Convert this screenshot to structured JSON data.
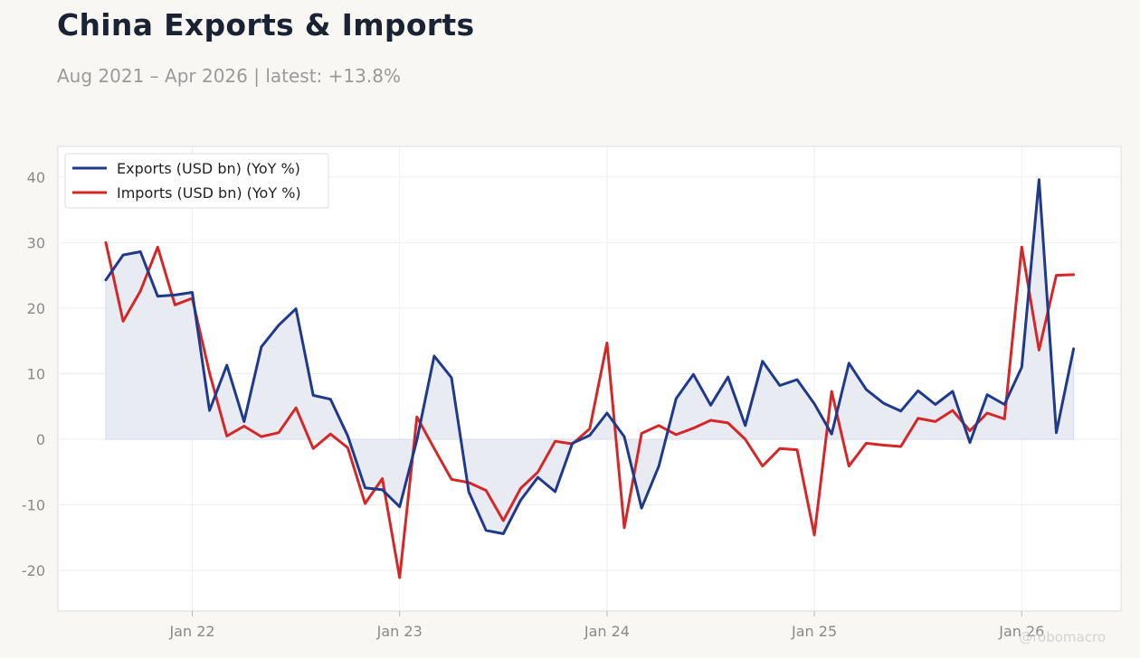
{
  "header": {
    "title": "China Exports & Imports",
    "subtitle": "Aug 2021 – Apr 2026 | latest: +13.8%"
  },
  "watermark": "@robomacro",
  "colors": {
    "exports": "#1f3a8a",
    "imports": "#d62728",
    "fill": "#e9ebf3",
    "grid": "#eeeeee",
    "plot_bg": "#ffffff",
    "page_bg": "#f8f7f4"
  },
  "chart_data": {
    "type": "line",
    "x_start": "2021-08",
    "x_ticks": [
      {
        "label": "Jan 22",
        "month": "2022-01"
      },
      {
        "label": "Jan 23",
        "month": "2023-01"
      },
      {
        "label": "Jan 24",
        "month": "2024-01"
      },
      {
        "label": "Jan 25",
        "month": "2025-01"
      },
      {
        "label": "Jan 26",
        "month": "2026-01"
      }
    ],
    "y_ticks": [
      40,
      30,
      20,
      10,
      0,
      -10,
      -20
    ],
    "ylim": [
      -26,
      45
    ],
    "grid": true,
    "legend_position": "top-left",
    "series": [
      {
        "name": "Exports (USD bn) (YoY %)",
        "filled_to_zero": true,
        "values": [
          24.3,
          28.1,
          28.6,
          21.8,
          22.0,
          22.4,
          4.4,
          11.3,
          2.7,
          14.1,
          17.4,
          19.9,
          6.7,
          6.1,
          0.5,
          -7.4,
          -7.7,
          -10.3,
          -0.1,
          12.7,
          9.4,
          -8.0,
          -13.9,
          -14.4,
          -9.3,
          -5.8,
          -8.0,
          -0.6,
          0.6,
          4.0,
          0.4,
          -10.5,
          -4.1,
          6.2,
          9.9,
          5.2,
          9.5,
          2.1,
          11.9,
          8.2,
          9.1,
          5.4,
          0.8,
          11.6,
          7.6,
          5.5,
          4.3,
          7.4,
          5.3,
          7.3,
          -0.5,
          6.8,
          5.3,
          11.0,
          39.6,
          1.0,
          13.8
        ]
      },
      {
        "name": "Imports (USD bn) (YoY %)",
        "filled_to_zero": false,
        "values": [
          30.0,
          18.0,
          22.6,
          29.3,
          20.5,
          21.5,
          10.1,
          0.5,
          2.0,
          0.4,
          1.0,
          4.8,
          -1.4,
          0.8,
          -1.3,
          -9.8,
          -6.0,
          -21.1,
          3.4,
          -1.4,
          -6.1,
          -6.6,
          -7.8,
          -12.4,
          -7.5,
          -5.0,
          -0.3,
          -0.7,
          1.6,
          14.7,
          -13.5,
          0.9,
          2.1,
          0.7,
          1.7,
          2.9,
          2.5,
          0.0,
          -4.1,
          -1.4,
          -1.6,
          -14.6,
          7.3,
          -4.1,
          -0.6,
          -0.9,
          -1.1,
          3.2,
          2.7,
          4.4,
          1.3,
          4.0,
          3.1,
          29.3,
          13.6,
          25.0,
          25.1
        ]
      }
    ]
  }
}
